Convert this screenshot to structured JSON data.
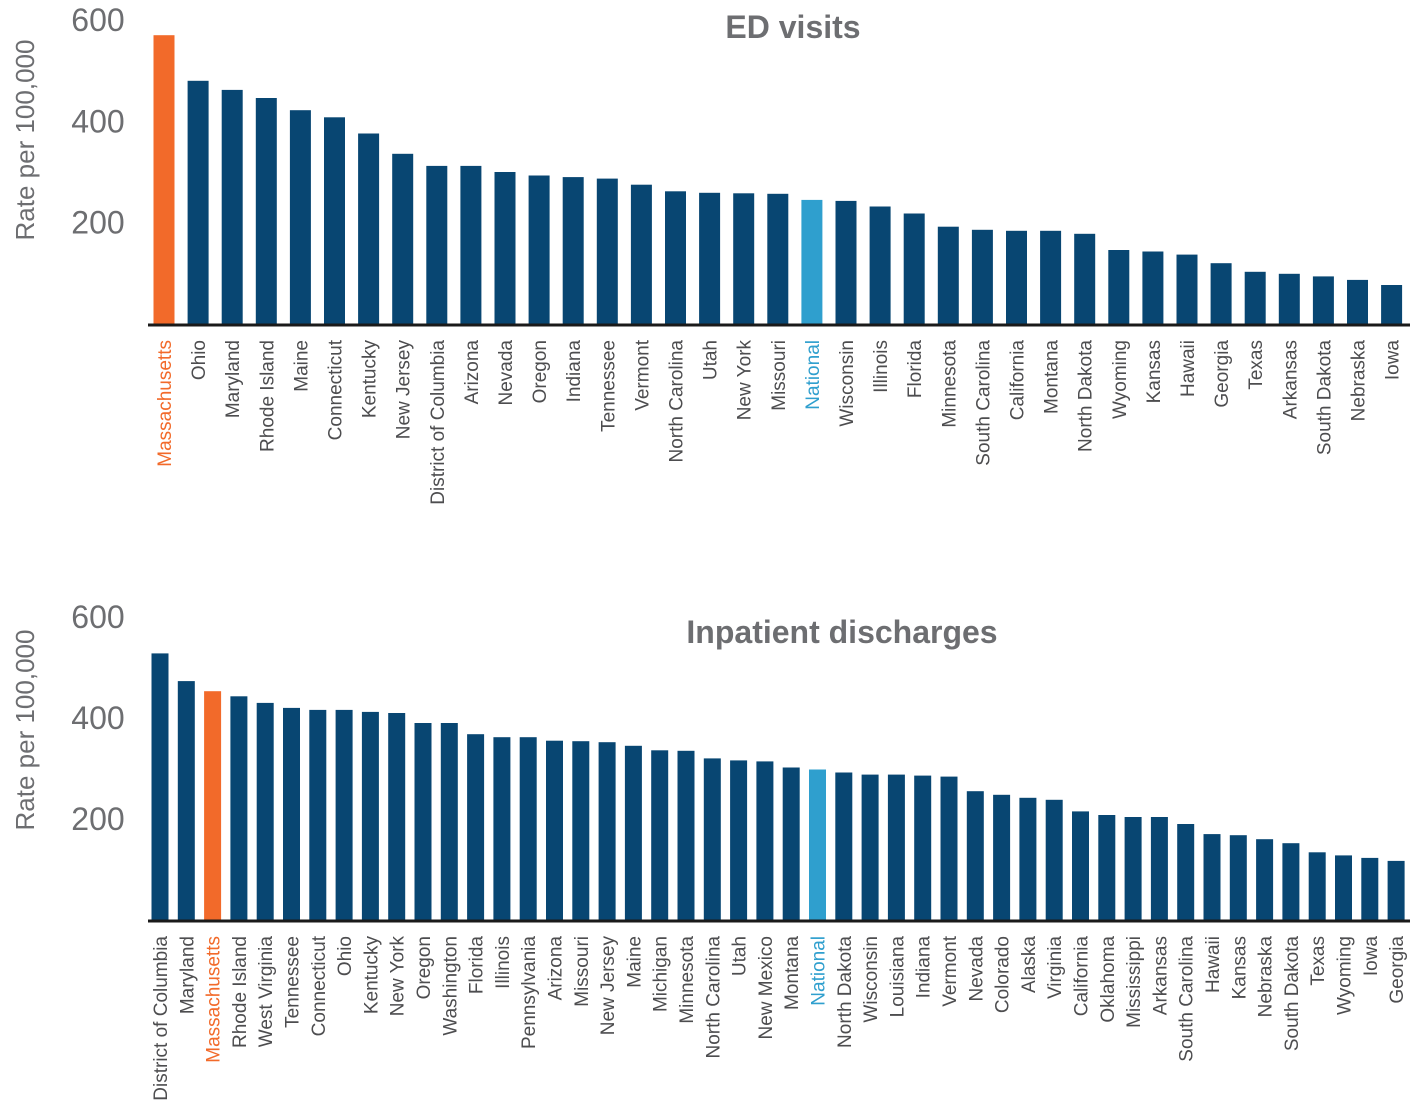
{
  "colors": {
    "bar": "#084672",
    "highlight": "#f26a2a",
    "national": "#2f9fce",
    "axis": "#1a1a1a",
    "text": "#6d6e71",
    "tick_label": "#4d4d4f"
  },
  "chart_data": [
    {
      "type": "bar",
      "title": "ED visits",
      "ylabel": "Rate per 100,000",
      "ylim": [
        0,
        600
      ],
      "yticks": [
        200,
        400,
        600
      ],
      "highlight": "Massachusetts",
      "national": "National",
      "categories": [
        "Massachusetts",
        "Ohio",
        "Maryland",
        "Rhode Island",
        "Maine",
        "Connecticut",
        "Kentucky",
        "New Jersey",
        "District of Columbia",
        "Arizona",
        "Nevada",
        "Oregon",
        "Indiana",
        "Tennessee",
        "Vermont",
        "North Carolina",
        "Utah",
        "New York",
        "Missouri",
        "National",
        "Wisconsin",
        "Illinois",
        "Florida",
        "Minnesota",
        "South Carolina",
        "California",
        "Montana",
        "North Dakota",
        "Wyoming",
        "Kansas",
        "Hawaii",
        "Georgia",
        "Texas",
        "Arkansas",
        "South Dakota",
        "Nebraska",
        "Iowa"
      ],
      "values": [
        570,
        480,
        462,
        446,
        422,
        408,
        376,
        336,
        312,
        312,
        300,
        293,
        290,
        287,
        275,
        262,
        259,
        258,
        257,
        245,
        243,
        232,
        218,
        192,
        186,
        184,
        184,
        178,
        146,
        143,
        137,
        120,
        103,
        99,
        94,
        87,
        77
      ]
    },
    {
      "type": "bar",
      "title": "Inpatient discharges",
      "ylabel": "Rate per 100,000",
      "ylim": [
        0,
        600
      ],
      "yticks": [
        200,
        400,
        600
      ],
      "highlight": "Massachusetts",
      "national": "National",
      "categories": [
        "District of Columbia",
        "Maryland",
        "Massachusetts",
        "Rhode Island",
        "West Virginia",
        "Tennessee",
        "Connecticut",
        "Ohio",
        "Kentucky",
        "New York",
        "Oregon",
        "Washington",
        "Florida",
        "Illinois",
        "Pennsylvania",
        "Arizona",
        "Missouri",
        "New Jersey",
        "Maine",
        "Michigan",
        "Minnesota",
        "North Carolina",
        "Utah",
        "New Mexico",
        "Montana",
        "National",
        "North Dakota",
        "Wisconsin",
        "Louisiana",
        "Indiana",
        "Vermont",
        "Nevada",
        "Colorado",
        "Alaska",
        "Virginia",
        "California",
        "Oklahoma",
        "Mississippi",
        "Arkansas",
        "South Carolina",
        "Hawaii",
        "Kansas",
        "Nebraska",
        "South Dakota",
        "Texas",
        "Wyoming",
        "Iowa",
        "Georgia"
      ],
      "values": [
        528,
        473,
        453,
        443,
        430,
        420,
        416,
        416,
        412,
        410,
        390,
        390,
        368,
        362,
        362,
        355,
        354,
        352,
        345,
        336,
        335,
        320,
        316,
        314,
        302,
        298,
        292,
        288,
        288,
        286,
        284,
        255,
        248,
        242,
        238,
        215,
        208,
        204,
        204,
        190,
        170,
        168,
        160,
        152,
        134,
        128,
        123,
        117
      ]
    }
  ]
}
